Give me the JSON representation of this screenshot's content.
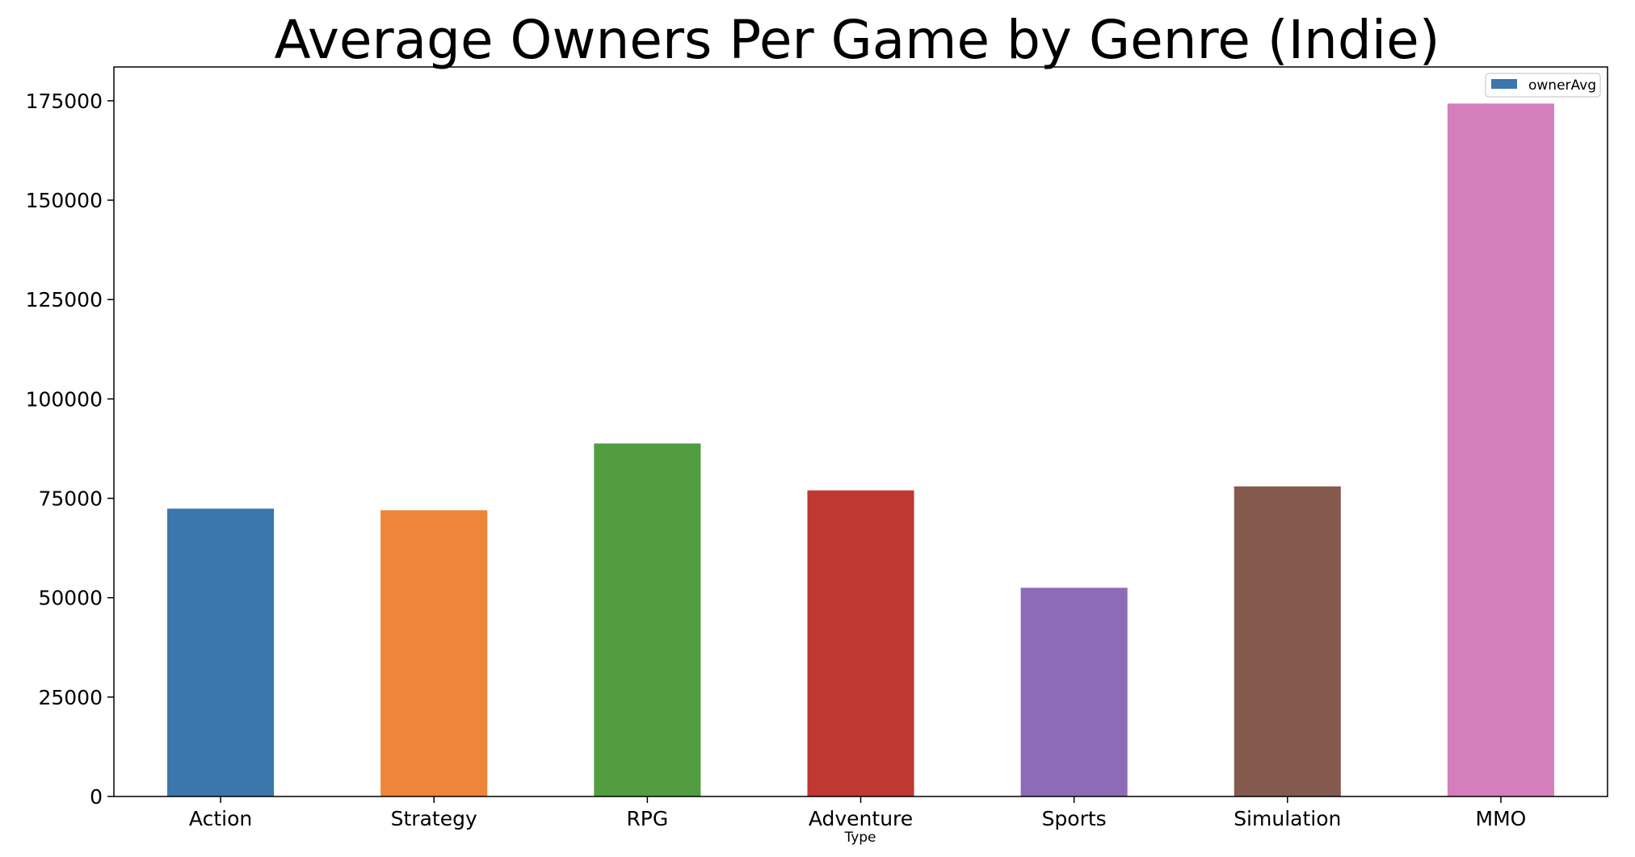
{
  "chart_data": {
    "type": "bar",
    "title": "Average Owners Per Game by Genre (Indie)",
    "xlabel": "Type",
    "ylabel": "",
    "categories": [
      "Action",
      "Strategy",
      "RPG",
      "Adventure",
      "Sports",
      "Simulation",
      "MMO"
    ],
    "series": [
      {
        "name": "ownerAvg",
        "values": [
          72400,
          72000,
          88800,
          77000,
          52500,
          78000,
          174300
        ]
      }
    ],
    "bar_colors": [
      "#3b76ad",
      "#ef8539",
      "#519d40",
      "#c13833",
      "#8e6bb7",
      "#845a4f",
      "#d47ebe"
    ],
    "legend_color": "#3b76ad",
    "ylim": [
      0,
      183500
    ],
    "yticks": [
      0,
      25000,
      50000,
      75000,
      100000,
      125000,
      150000,
      175000
    ],
    "grid": false,
    "legend_position": "top-right"
  }
}
